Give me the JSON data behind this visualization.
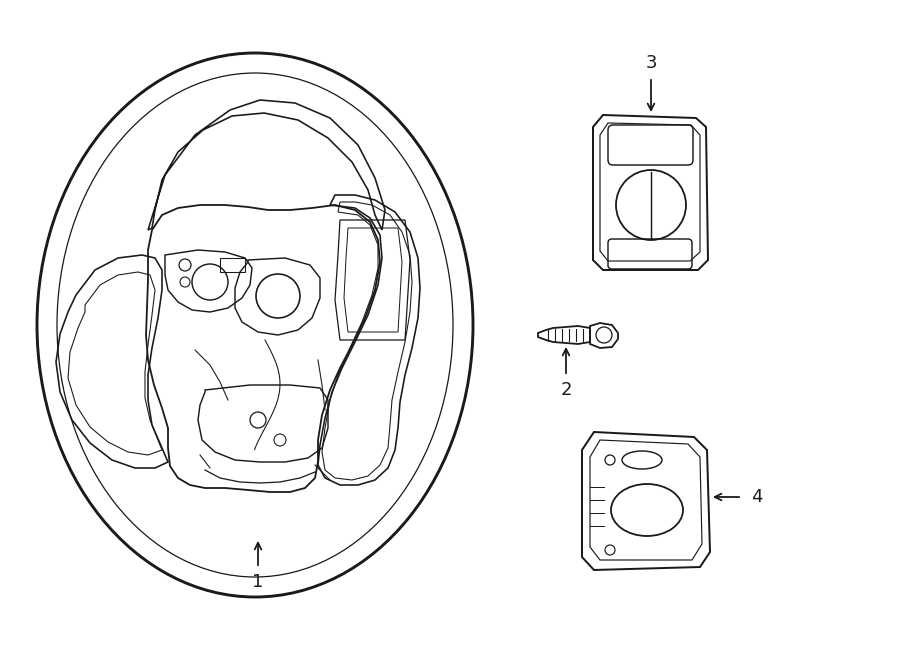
{
  "bg_color": "#ffffff",
  "line_color": "#1a1a1a",
  "lw": 1.3,
  "figsize": [
    9.0,
    6.61
  ],
  "dpi": 100
}
